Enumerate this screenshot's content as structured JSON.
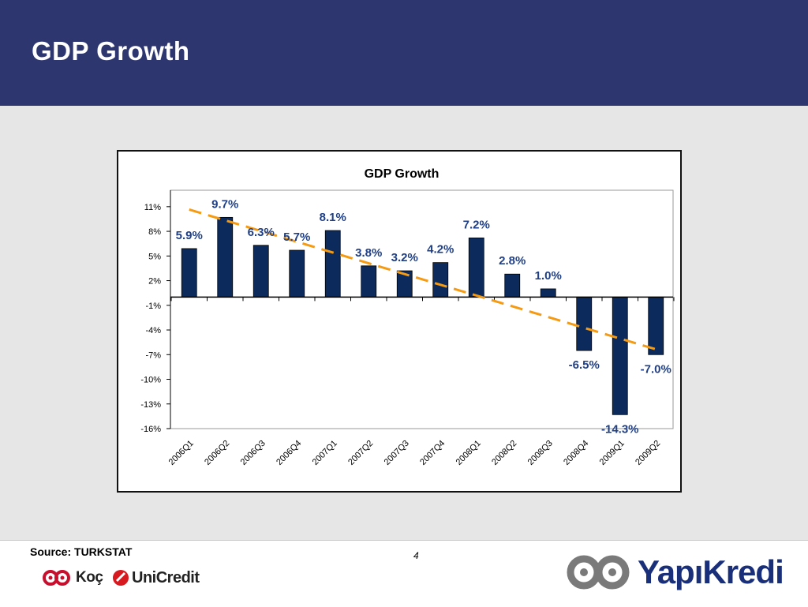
{
  "header": {
    "title": "GDP Growth"
  },
  "footer": {
    "source": "Source: TURKSTAT",
    "page_number": "4"
  },
  "logos": {
    "koc": "Koç",
    "unicredit": "UniCredit",
    "yapikredi": "YapıKredi"
  },
  "colors": {
    "header_bg": "#2e3670",
    "bar": "#0c2b5c",
    "trend": "#f59a13",
    "label": "#1f3f86"
  },
  "chart_data": {
    "type": "bar",
    "title": "GDP Growth",
    "categories": [
      "2006Q1",
      "2006Q2",
      "2006Q3",
      "2006Q4",
      "2007Q1",
      "2007Q2",
      "2007Q3",
      "2007Q4",
      "2008Q1",
      "2008Q2",
      "2008Q3",
      "2008Q4",
      "2009Q1",
      "2009Q2"
    ],
    "values": [
      5.9,
      9.7,
      6.3,
      5.7,
      8.1,
      3.8,
      3.2,
      4.2,
      7.2,
      2.8,
      1.0,
      -6.5,
      -14.3,
      -7.0
    ],
    "data_labels": [
      "5.9%",
      "9.7%",
      "6.3%",
      "5.7%",
      "8.1%",
      "3.8%",
      "3.2%",
      "4.2%",
      "7.2%",
      "2.8%",
      "1.0%",
      "-6.5%",
      "-14.3%",
      "-7.0%"
    ],
    "y_ticks": [
      11,
      8,
      5,
      2,
      -1,
      -4,
      -7,
      -10,
      -13,
      -16
    ],
    "y_tick_labels": [
      "11%",
      "8%",
      "5%",
      "2%",
      "-1%",
      "-4%",
      "-7%",
      "-10%",
      "-13%",
      "-16%"
    ],
    "ylim": [
      -16,
      13
    ],
    "trendline": {
      "type": "linear",
      "style": "dashed",
      "color": "#f59a13"
    },
    "grid": false,
    "legend": false
  }
}
